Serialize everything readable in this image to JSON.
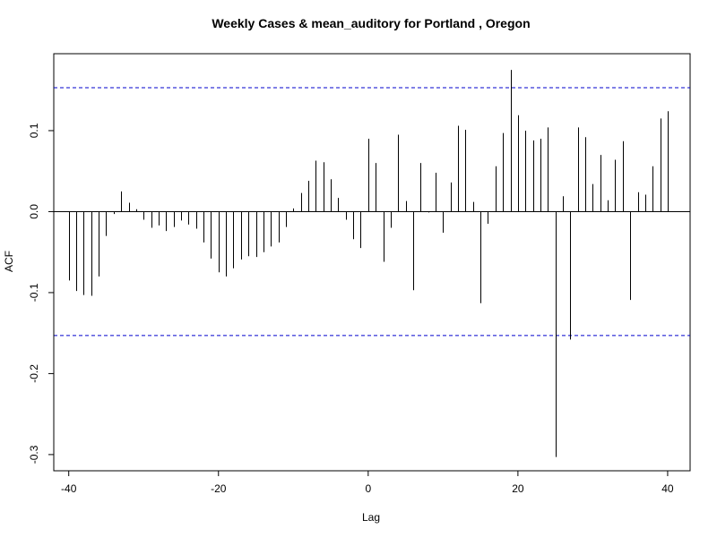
{
  "chart_data": {
    "type": "bar",
    "title": "Weekly Cases & mean_auditory for Portland , Oregon",
    "xlabel": "Lag",
    "ylabel": "ACF",
    "xlim": [
      -42,
      43
    ],
    "ylim": [
      -0.32,
      0.195
    ],
    "x_ticks": [
      -40,
      -20,
      0,
      20,
      40
    ],
    "x_tick_labels": [
      "-40",
      "-20",
      "0",
      "20",
      "40"
    ],
    "y_ticks": [
      -0.3,
      -0.2,
      -0.1,
      0.0,
      0.1
    ],
    "y_tick_labels": [
      "-0.3",
      "-0.2",
      "-0.1",
      "0.0",
      "0.1"
    ],
    "confidence_bounds": [
      0.153,
      -0.153
    ],
    "confidence_color": "#0000cc",
    "lags": [
      -40,
      -39,
      -38,
      -37,
      -36,
      -35,
      -34,
      -33,
      -32,
      -31,
      -30,
      -29,
      -28,
      -27,
      -26,
      -25,
      -24,
      -23,
      -22,
      -21,
      -20,
      -19,
      -18,
      -17,
      -16,
      -15,
      -14,
      -13,
      -12,
      -11,
      -10,
      -9,
      -8,
      -7,
      -6,
      -5,
      -4,
      -3,
      -2,
      -1,
      0,
      1,
      2,
      3,
      4,
      5,
      6,
      7,
      8,
      9,
      10,
      11,
      12,
      13,
      14,
      15,
      16,
      17,
      18,
      19,
      20,
      21,
      22,
      23,
      24,
      25,
      26,
      27,
      28,
      29,
      30,
      31,
      32,
      33,
      34,
      35,
      36,
      37,
      38,
      39,
      40
    ],
    "values": [
      -0.085,
      -0.098,
      -0.103,
      -0.104,
      -0.08,
      -0.03,
      -0.003,
      0.025,
      0.011,
      0.003,
      -0.01,
      -0.02,
      -0.017,
      -0.024,
      -0.019,
      -0.011,
      -0.016,
      -0.021,
      -0.038,
      -0.058,
      -0.075,
      -0.08,
      -0.07,
      -0.059,
      -0.055,
      -0.056,
      -0.05,
      -0.043,
      -0.038,
      -0.019,
      0.004,
      0.023,
      0.038,
      0.063,
      0.061,
      0.04,
      0.017,
      -0.01,
      -0.034,
      -0.045,
      0.09,
      0.06,
      -0.062,
      -0.02,
      0.095,
      0.013,
      -0.097,
      0.06,
      -0.001,
      0.048,
      -0.026,
      0.036,
      0.106,
      0.101,
      0.012,
      -0.113,
      -0.015,
      0.056,
      0.097,
      0.175,
      0.119,
      0.1,
      0.088,
      0.09,
      0.104,
      -0.303,
      0.019,
      -0.158,
      0.104,
      0.092,
      0.034,
      0.07,
      0.014,
      0.064,
      0.087,
      -0.109,
      0.024,
      0.021,
      0.056,
      0.115,
      0.124
    ]
  }
}
